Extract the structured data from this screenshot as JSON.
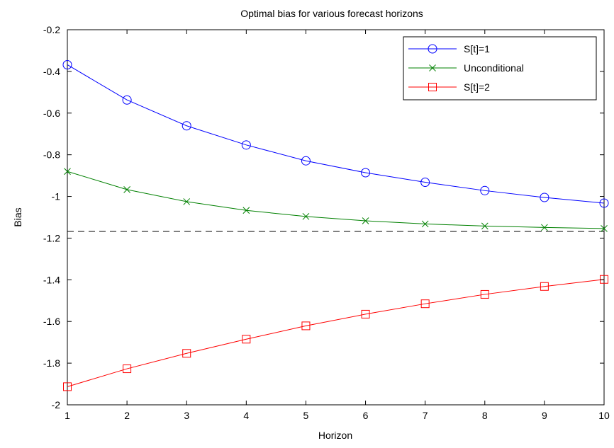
{
  "chart_data": {
    "type": "line",
    "title": "Optimal bias for various forecast horizons",
    "xlabel": "Horizon",
    "ylabel": "Bias",
    "xlim": [
      1,
      10
    ],
    "ylim": [
      -2,
      -0.2
    ],
    "xticks": [
      1,
      2,
      3,
      4,
      5,
      6,
      7,
      8,
      9,
      10
    ],
    "yticks": [
      -2,
      -1.8,
      -1.6,
      -1.4,
      -1.2,
      -1,
      -0.8,
      -0.6,
      -0.4,
      -0.2
    ],
    "ytick_labels": [
      "-2",
      "-1.8",
      "-1.6",
      "-1.4",
      "-1.2",
      "-1",
      "-0.8",
      "-0.6",
      "-0.4",
      "-0.2"
    ],
    "grid": false,
    "legend_position": "top-right",
    "x": [
      1,
      2,
      3,
      4,
      5,
      6,
      7,
      8,
      9,
      10
    ],
    "series": [
      {
        "name": "S[t]=1",
        "color": "#0000ff",
        "marker": "circle",
        "values": [
          -0.368,
          -0.537,
          -0.661,
          -0.753,
          -0.829,
          -0.886,
          -0.932,
          -0.972,
          -1.005,
          -1.032
        ]
      },
      {
        "name": "Unconditional",
        "color": "#008000",
        "marker": "x",
        "values": [
          -0.88,
          -0.967,
          -1.025,
          -1.067,
          -1.096,
          -1.117,
          -1.132,
          -1.142,
          -1.149,
          -1.154
        ]
      },
      {
        "name": "S[t]=2",
        "color": "#ff0000",
        "marker": "square",
        "values": [
          -1.913,
          -1.827,
          -1.753,
          -1.685,
          -1.621,
          -1.565,
          -1.515,
          -1.47,
          -1.432,
          -1.398
        ]
      }
    ],
    "reference_line": {
      "y": -1.168,
      "style": "dashed",
      "color": "#000000"
    }
  }
}
